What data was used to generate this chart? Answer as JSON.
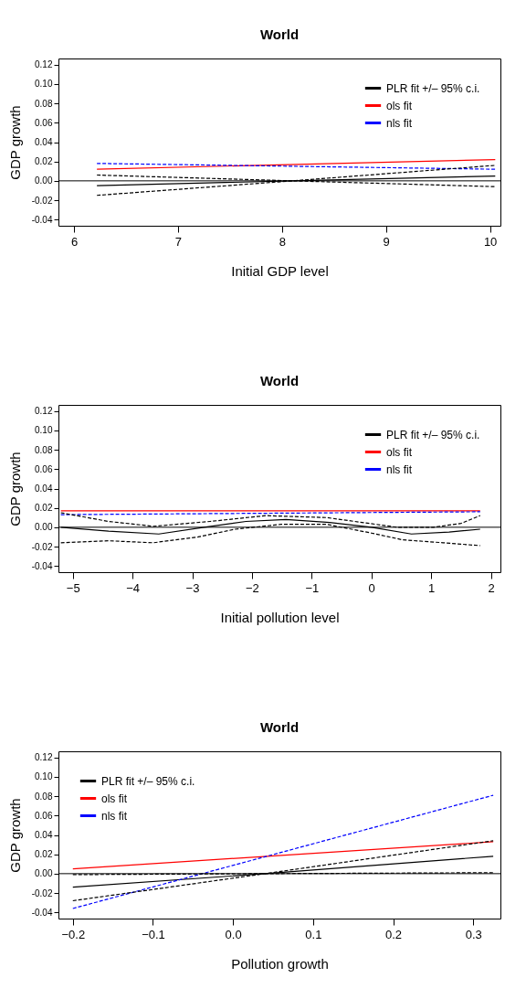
{
  "chart_data": [
    {
      "type": "line",
      "title": "World",
      "xlabel": "Initial GDP level",
      "ylabel": "GDP growth",
      "legend": "top right",
      "xlim": [
        5.85,
        10.1
      ],
      "xticks": [
        6,
        7,
        8,
        9,
        10
      ],
      "ylim": [
        -0.0464,
        0.1264
      ],
      "yticks": [
        {
          "value": -0.04,
          "label": "-0.04"
        },
        {
          "value": -0.02,
          "label": "-0.02"
        },
        {
          "value": 0,
          "label": "0.00"
        },
        {
          "value": 0.02,
          "label": "0.02"
        },
        {
          "value": 0.04,
          "label": "0.04"
        },
        {
          "value": 0.06,
          "label": "0.06"
        },
        {
          "value": 0.08,
          "label": "0.08"
        },
        {
          "value": 0.1,
          "label": "0.10"
        },
        {
          "value": 0.12,
          "label": "0.12"
        }
      ],
      "ref_lines": [
        {
          "axis": "y",
          "value": 0,
          "color": "#000000"
        }
      ],
      "series": [
        {
          "name": "PLR fit +/– 95% c.i.",
          "color": "#000000",
          "line_style": "solid",
          "x": [
            6.22,
            8.1,
            10.05
          ],
          "values": [
            -0.005,
            0.0,
            0.005
          ]
        },
        {
          "name": "ols fit",
          "color": "#ff0000",
          "line_style": "solid",
          "x": [
            6.22,
            10.05
          ],
          "values": [
            0.012,
            0.022
          ]
        },
        {
          "name": "nls fit",
          "color": "#0000ff",
          "line_style": "dashed",
          "x": [
            6.22,
            10.05
          ],
          "values": [
            0.018,
            0.012
          ]
        },
        {
          "color": "#000000",
          "line_style": "dashed",
          "x": [
            6.22,
            8.1,
            10.05
          ],
          "values": [
            0.006,
            0.0,
            0.016
          ]
        },
        {
          "color": "#000000",
          "line_style": "dashed",
          "x": [
            6.22,
            8.1,
            10.05
          ],
          "values": [
            -0.015,
            0.0,
            -0.006
          ]
        }
      ]
    },
    {
      "type": "line",
      "title": "World",
      "xlabel": "Initial pollution level",
      "ylabel": "GDP growth",
      "legend": "top right",
      "xlim": [
        -5.24,
        2.16
      ],
      "xticks": [
        {
          "value": -5,
          "label": "−5"
        },
        {
          "value": -4,
          "label": "−4"
        },
        {
          "value": -3,
          "label": "−3"
        },
        {
          "value": -2,
          "label": "−2"
        },
        {
          "value": -1,
          "label": "−1"
        },
        0,
        1,
        2
      ],
      "ylim": [
        -0.0464,
        0.1264
      ],
      "yticks": [
        {
          "value": -0.04,
          "label": "-0.04"
        },
        {
          "value": -0.02,
          "label": "-0.02"
        },
        {
          "value": 0,
          "label": "0.00"
        },
        {
          "value": 0.02,
          "label": "0.02"
        },
        {
          "value": 0.04,
          "label": "0.04"
        },
        {
          "value": 0.06,
          "label": "0.06"
        },
        {
          "value": 0.08,
          "label": "0.08"
        },
        {
          "value": 0.1,
          "label": "0.10"
        },
        {
          "value": 0.12,
          "label": "0.12"
        }
      ],
      "ref_lines": [
        {
          "axis": "y",
          "value": 0,
          "color": "#000000"
        }
      ],
      "series": [
        {
          "name": "PLR fit +/– 95% c.i.",
          "color": "#000000",
          "line_style": "solid",
          "x": [
            -5.2,
            -4.4,
            -3.56,
            -2.8,
            -2.1,
            -1.43,
            -0.7,
            0.0,
            0.67,
            1.3,
            1.82
          ],
          "values": [
            0.0,
            -0.004,
            -0.007,
            0.0,
            0.006,
            0.008,
            0.005,
            0.0,
            -0.007,
            -0.005,
            -0.002
          ]
        },
        {
          "name": "ols fit",
          "color": "#ff0000",
          "line_style": "solid",
          "x": [
            -5.2,
            1.82
          ],
          "values": [
            0.017,
            0.017
          ]
        },
        {
          "name": "nls fit",
          "color": "#0000ff",
          "line_style": "dashed",
          "x": [
            -5.2,
            1.82
          ],
          "values": [
            0.013,
            0.016
          ]
        },
        {
          "color": "#000000",
          "line_style": "dashed",
          "x": [
            -5.2,
            -4.4,
            -3.65,
            -2.7,
            -1.77,
            -0.75,
            0.43,
            1.04,
            1.5,
            1.82
          ],
          "values": [
            0.015,
            0.006,
            0.001,
            0.006,
            0.012,
            0.01,
            0.0,
            0.0,
            0.004,
            0.012
          ]
        },
        {
          "color": "#000000",
          "line_style": "dashed",
          "x": [
            -5.2,
            -4.4,
            -3.65,
            -2.9,
            -2.28,
            -1.51,
            -0.75,
            0.0,
            0.52,
            1.2,
            1.82
          ],
          "values": [
            -0.016,
            -0.014,
            -0.016,
            -0.01,
            -0.002,
            0.003,
            0.003,
            -0.006,
            -0.013,
            -0.016,
            -0.019
          ]
        }
      ]
    },
    {
      "type": "line",
      "title": "World",
      "xlabel": "Pollution growth",
      "ylabel": "GDP growth",
      "legend": "top left",
      "xlim": [
        -0.218,
        0.334
      ],
      "xticks": [
        {
          "value": -0.2,
          "label": "−0.2"
        },
        {
          "value": -0.1,
          "label": "−0.1"
        },
        {
          "value": 0,
          "label": "0.0"
        },
        {
          "value": 0.1,
          "label": "0.1"
        },
        {
          "value": 0.2,
          "label": "0.2"
        },
        {
          "value": 0.3,
          "label": "0.3"
        }
      ],
      "ylim": [
        -0.0464,
        0.1264
      ],
      "yticks": [
        {
          "value": -0.04,
          "label": "-0.04"
        },
        {
          "value": -0.02,
          "label": "-0.02"
        },
        {
          "value": 0,
          "label": "0.00"
        },
        {
          "value": 0.02,
          "label": "0.02"
        },
        {
          "value": 0.04,
          "label": "0.04"
        },
        {
          "value": 0.06,
          "label": "0.06"
        },
        {
          "value": 0.08,
          "label": "0.08"
        },
        {
          "value": 0.1,
          "label": "0.10"
        },
        {
          "value": 0.12,
          "label": "0.12"
        }
      ],
      "ref_lines": [
        {
          "axis": "y",
          "value": 0,
          "color": "#000000"
        }
      ],
      "series": [
        {
          "name": "PLR fit +/– 95% c.i.",
          "color": "#000000",
          "line_style": "solid",
          "x": [
            -0.2,
            0.04,
            0.325
          ],
          "values": [
            -0.014,
            0.0,
            0.018
          ]
        },
        {
          "name": "ols fit",
          "color": "#ff0000",
          "line_style": "solid",
          "x": [
            -0.2,
            0.325
          ],
          "values": [
            0.005,
            0.033
          ]
        },
        {
          "name": "nls fit",
          "color": "#0000ff",
          "line_style": "dashed",
          "x": [
            -0.2,
            0.325
          ],
          "values": [
            -0.036,
            0.081
          ]
        },
        {
          "color": "#000000",
          "line_style": "dashed",
          "x": [
            -0.2,
            0.04,
            0.325
          ],
          "values": [
            -0.001,
            0.0,
            0.001
          ]
        },
        {
          "color": "#000000",
          "line_style": "dashed",
          "x": [
            -0.2,
            0.04,
            0.325
          ],
          "values": [
            -0.028,
            0.0,
            0.034
          ]
        }
      ]
    }
  ]
}
